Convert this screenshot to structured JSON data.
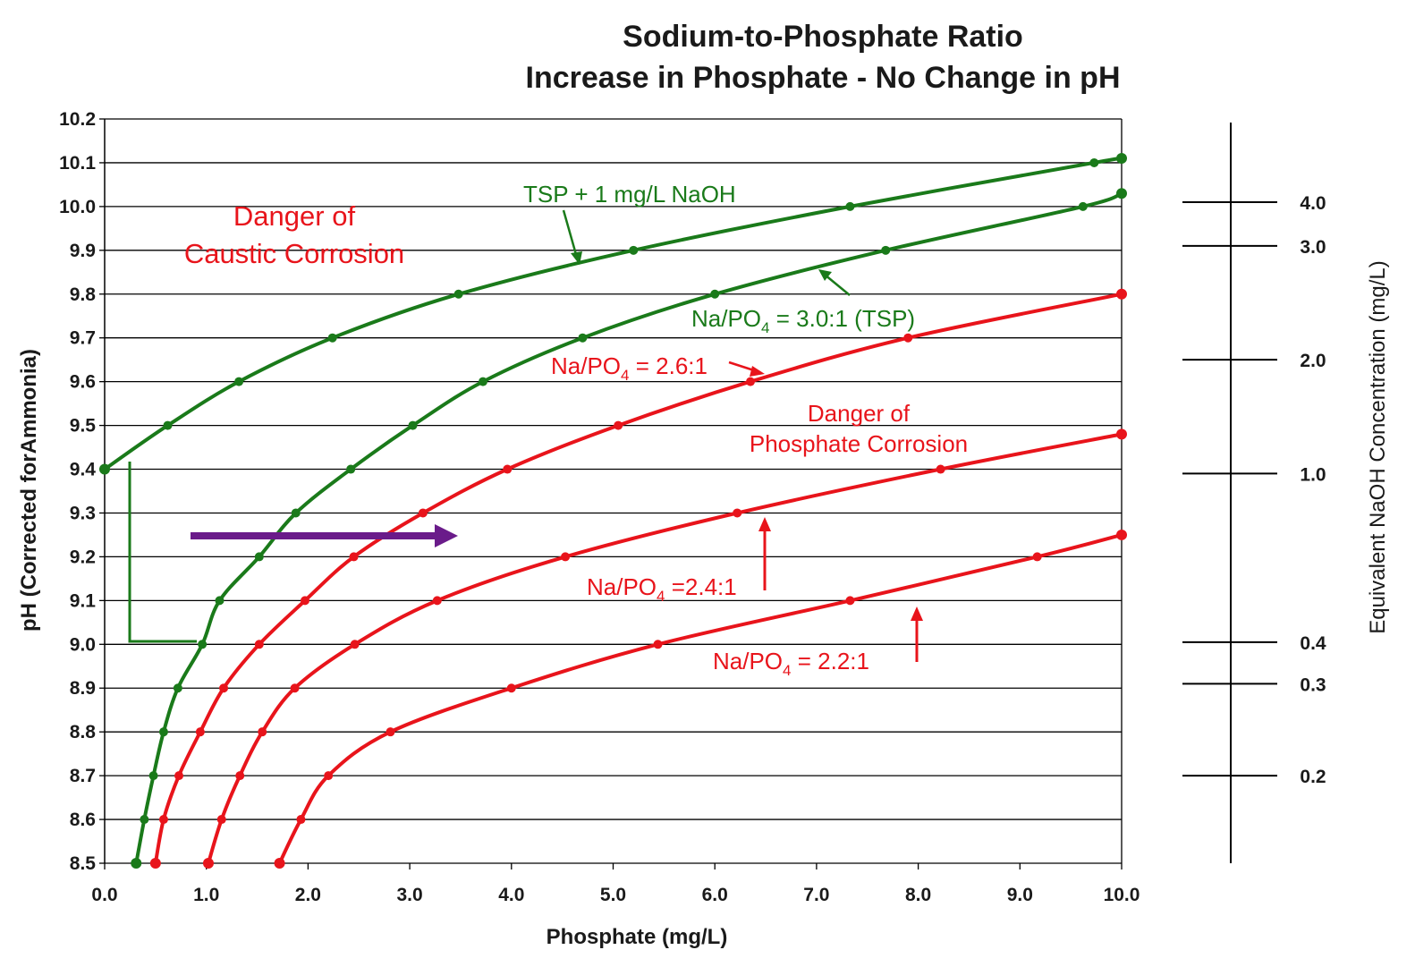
{
  "chart_data": {
    "type": "line",
    "title": "Sodium-to-Phosphate Ratio",
    "subtitle": "Increase in Phosphate - No Change in pH",
    "xlabel": "Phosphate (mg/L)",
    "ylabel": "pH (Corrected forAmmonia)",
    "right_axis_label": "Equivalent NaOH Concentration (mg/L)",
    "xlim": [
      0.0,
      10.0
    ],
    "ylim": [
      8.5,
      10.2
    ],
    "x_ticks": [
      "0.0",
      "1.0",
      "2.0",
      "3.0",
      "4.0",
      "5.0",
      "6.0",
      "7.0",
      "8.0",
      "9.0",
      "10.0"
    ],
    "y_ticks": [
      "8.5",
      "8.6",
      "8.7",
      "8.8",
      "8.9",
      "9.0",
      "9.1",
      "9.2",
      "9.3",
      "9.4",
      "9.5",
      "9.6",
      "9.7",
      "9.8",
      "9.9",
      "10.0",
      "10.1",
      "10.2"
    ],
    "grid": true,
    "series": [
      {
        "name": "TSP + 1 mg/L NaOH",
        "color": "#1a7a1a",
        "points": [
          [
            0.0,
            9.4
          ],
          [
            0.62,
            9.5
          ],
          [
            1.32,
            9.6
          ],
          [
            2.24,
            9.7
          ],
          [
            3.48,
            9.8
          ],
          [
            5.2,
            9.9
          ],
          [
            7.33,
            10.0
          ],
          [
            9.73,
            10.1
          ],
          [
            10.0,
            10.11
          ]
        ]
      },
      {
        "name": "Na/PO4 = 3.0:1 (TSP)",
        "color": "#1a7a1a",
        "points": [
          [
            0.31,
            8.5
          ],
          [
            0.39,
            8.6
          ],
          [
            0.48,
            8.7
          ],
          [
            0.58,
            8.8
          ],
          [
            0.72,
            8.9
          ],
          [
            0.96,
            9.0
          ],
          [
            1.13,
            9.1
          ],
          [
            1.52,
            9.2
          ],
          [
            1.88,
            9.3
          ],
          [
            2.42,
            9.4
          ],
          [
            3.03,
            9.5
          ],
          [
            3.72,
            9.6
          ],
          [
            4.7,
            9.7
          ],
          [
            6.0,
            9.8
          ],
          [
            7.68,
            9.9
          ],
          [
            9.62,
            10.0
          ],
          [
            10.0,
            10.03
          ]
        ]
      },
      {
        "name": "Na/PO4 = 2.6:1",
        "color": "#e8141b",
        "points": [
          [
            0.5,
            8.5
          ],
          [
            0.58,
            8.6
          ],
          [
            0.73,
            8.7
          ],
          [
            0.94,
            8.8
          ],
          [
            1.17,
            8.9
          ],
          [
            1.52,
            9.0
          ],
          [
            1.97,
            9.1
          ],
          [
            2.45,
            9.2
          ],
          [
            3.13,
            9.3
          ],
          [
            3.96,
            9.4
          ],
          [
            5.05,
            9.5
          ],
          [
            6.35,
            9.6
          ],
          [
            7.9,
            9.7
          ],
          [
            10.0,
            9.8
          ]
        ]
      },
      {
        "name": "Na/PO4 =2.4:1",
        "color": "#e8141b",
        "points": [
          [
            1.02,
            8.5
          ],
          [
            1.15,
            8.6
          ],
          [
            1.33,
            8.7
          ],
          [
            1.55,
            8.8
          ],
          [
            1.87,
            8.9
          ],
          [
            2.46,
            9.0
          ],
          [
            3.27,
            9.1
          ],
          [
            4.53,
            9.2
          ],
          [
            6.22,
            9.3
          ],
          [
            8.22,
            9.4
          ],
          [
            10.0,
            9.48
          ]
        ]
      },
      {
        "name": "Na/PO4 = 2.2:1",
        "color": "#e8141b",
        "points": [
          [
            1.72,
            8.5
          ],
          [
            1.93,
            8.6
          ],
          [
            2.2,
            8.7
          ],
          [
            2.81,
            8.8
          ],
          [
            4.0,
            8.9
          ],
          [
            5.44,
            9.0
          ],
          [
            7.33,
            9.1
          ],
          [
            9.17,
            9.2
          ],
          [
            10.0,
            9.25
          ]
        ]
      }
    ],
    "right_scale": {
      "ticks": [
        {
          "label": "4.0",
          "ph": 10.01
        },
        {
          "label": "3.0",
          "ph": 9.91
        },
        {
          "label": "2.0",
          "ph": 9.65
        },
        {
          "label": "1.0",
          "ph": 9.39
        },
        {
          "label": "0.4",
          "ph": 9.005
        },
        {
          "label": "0.3",
          "ph": 8.91
        },
        {
          "label": "0.2",
          "ph": 8.7
        }
      ]
    },
    "annotations": {
      "caustic_line1": "Danger of",
      "caustic_line2": "Caustic Corrosion",
      "phosphate_line1": "Danger of",
      "phosphate_line2": "Phosphate Corrosion",
      "label_tsp_naoh": "TSP + 1 mg/L NaOH",
      "label_30_a": "Na/PO",
      "label_30_b": "4",
      "label_30_c": " = 3.0:1 (TSP)",
      "label_26_a": "Na/PO",
      "label_26_b": "4",
      "label_26_c": " = 2.6:1",
      "label_24_a": "Na/PO",
      "label_24_b": "4",
      "label_24_c": " =2.4:1",
      "label_22_a": "Na/PO",
      "label_22_b": "4",
      "label_22_c": " = 2.2:1"
    },
    "colors": {
      "green": "#1a7a1a",
      "red": "#e8141b",
      "purple": "#6a1b8a"
    }
  }
}
